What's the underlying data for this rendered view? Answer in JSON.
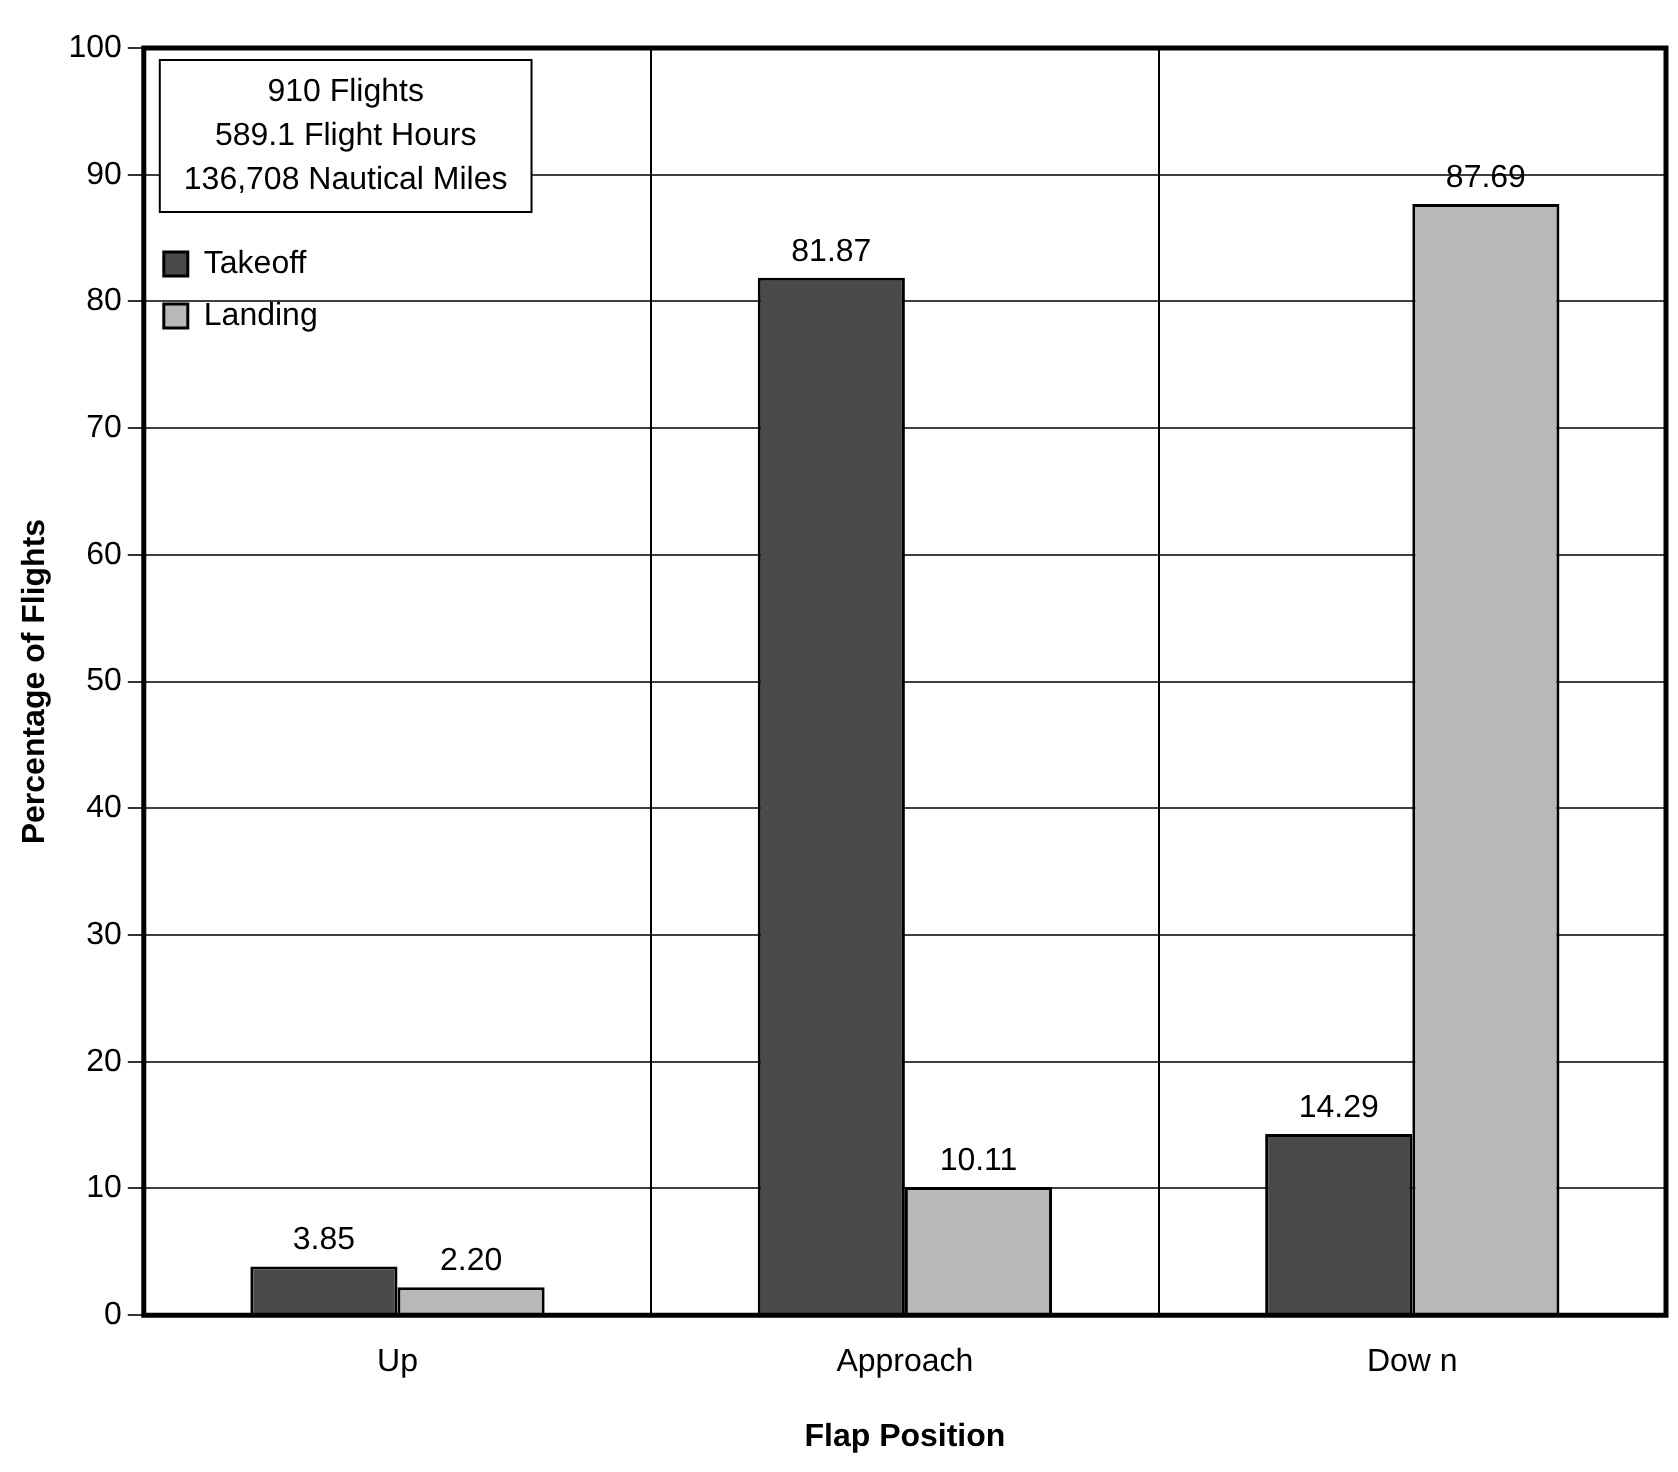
{
  "chart_data": {
    "type": "bar",
    "xlabel": "Flap Position",
    "ylabel": "Percentage of Flights",
    "annotations": [
      "910 Flights",
      "589.1 Flight Hours",
      "136,708 Nautical Miles"
    ],
    "categories": [
      "Up",
      "Approach",
      "Dow n"
    ],
    "series": [
      {
        "name": "Takeoff",
        "color": "#4a4a4a",
        "values": [
          3.85,
          81.87,
          14.29
        ],
        "value_labels": [
          "3.85",
          "81.87",
          "14.29"
        ]
      },
      {
        "name": "Landing",
        "color": "#b8b8b8",
        "values": [
          2.2,
          10.11,
          87.69
        ],
        "value_labels": [
          "2.20",
          "10.11",
          "87.69"
        ]
      }
    ],
    "ylim": [
      0,
      100
    ],
    "yticks": [
      0,
      10,
      20,
      30,
      40,
      50,
      60,
      70,
      80,
      90,
      100
    ],
    "grid": true,
    "legend": "top left"
  }
}
